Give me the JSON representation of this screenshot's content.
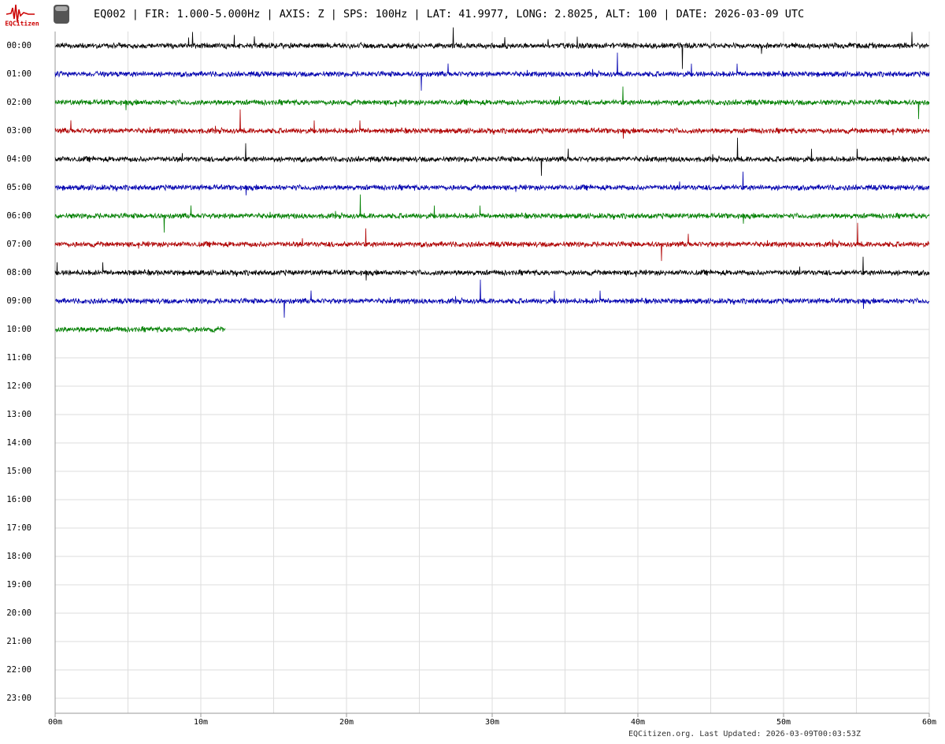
{
  "header": {
    "logo_text": "EQCitizen",
    "title": "EQ002 | FIR: 1.000-5.000Hz | AXIS: Z | SPS: 100Hz | LAT: 41.9977, LONG: 2.8025, ALT: 100 | DATE: 2026-03-09 UTC"
  },
  "hours": [
    "00:00",
    "01:00",
    "02:00",
    "03:00",
    "04:00",
    "05:00",
    "06:00",
    "07:00",
    "08:00",
    "09:00",
    "10:00",
    "11:00",
    "12:00",
    "13:00",
    "14:00",
    "15:00",
    "16:00",
    "17:00",
    "18:00",
    "19:00",
    "20:00",
    "21:00",
    "22:00",
    "23:00"
  ],
  "x_axis": {
    "lim": [
      0,
      60
    ],
    "ticks": [
      {
        "value": 0,
        "label": "00m"
      },
      {
        "value": 10,
        "label": "10m"
      },
      {
        "value": 20,
        "label": "20m"
      },
      {
        "value": 30,
        "label": "30m"
      },
      {
        "value": 40,
        "label": "40m"
      },
      {
        "value": 50,
        "label": "50m"
      },
      {
        "value": 60,
        "label": "60m"
      }
    ],
    "grid": [
      0,
      5,
      10,
      15,
      20,
      25,
      30,
      35,
      40,
      45,
      50,
      55,
      60
    ]
  },
  "traces": [
    {
      "row": 0,
      "color": "#000000",
      "end": 60
    },
    {
      "row": 1,
      "color": "#0000b0",
      "end": 60
    },
    {
      "row": 2,
      "color": "#008000",
      "end": 60
    },
    {
      "row": 3,
      "color": "#b00000",
      "end": 60
    },
    {
      "row": 4,
      "color": "#000000",
      "end": 60
    },
    {
      "row": 5,
      "color": "#0000b0",
      "end": 60
    },
    {
      "row": 6,
      "color": "#008000",
      "end": 60
    },
    {
      "row": 7,
      "color": "#b00000",
      "end": 60
    },
    {
      "row": 8,
      "color": "#000000",
      "end": 60
    },
    {
      "row": 9,
      "color": "#0000b0",
      "end": 60
    },
    {
      "row": 10,
      "color": "#008000",
      "end": 11.7
    }
  ],
  "footer": "EQCitizen.org. Last Updated: 2026-03-09T00:03:53Z"
}
